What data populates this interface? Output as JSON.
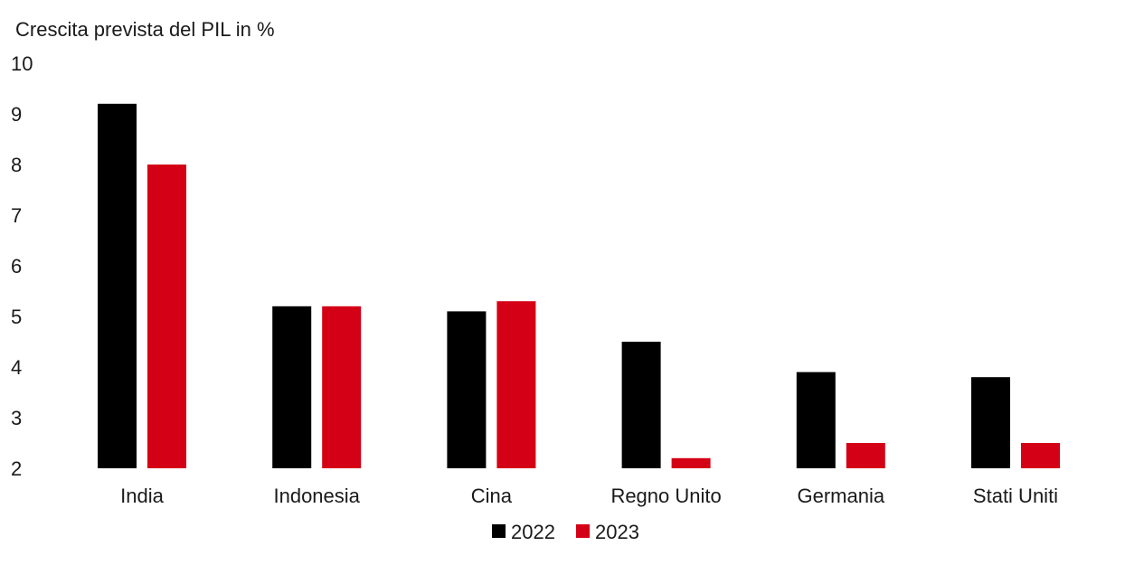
{
  "chart_data": {
    "type": "bar",
    "title": "",
    "ylabel": "Crescita prevista del PIL in %",
    "xlabel": "",
    "ylim": [
      2,
      10
    ],
    "yticks": [
      "2",
      "3",
      "4",
      "5",
      "6",
      "7",
      "8",
      "9",
      "10"
    ],
    "grid": false,
    "legend_position": "bottom",
    "categories": [
      "India",
      "Indonesia",
      "Cina",
      "Regno Unito",
      "Germania",
      "Stati Uniti"
    ],
    "series": [
      {
        "name": "2022",
        "color": "#000000",
        "values": [
          9.2,
          5.2,
          5.1,
          4.5,
          3.9,
          3.8
        ]
      },
      {
        "name": "2023",
        "color": "#d40015",
        "values": [
          8.0,
          5.2,
          5.3,
          2.2,
          2.5,
          2.5
        ]
      }
    ]
  }
}
